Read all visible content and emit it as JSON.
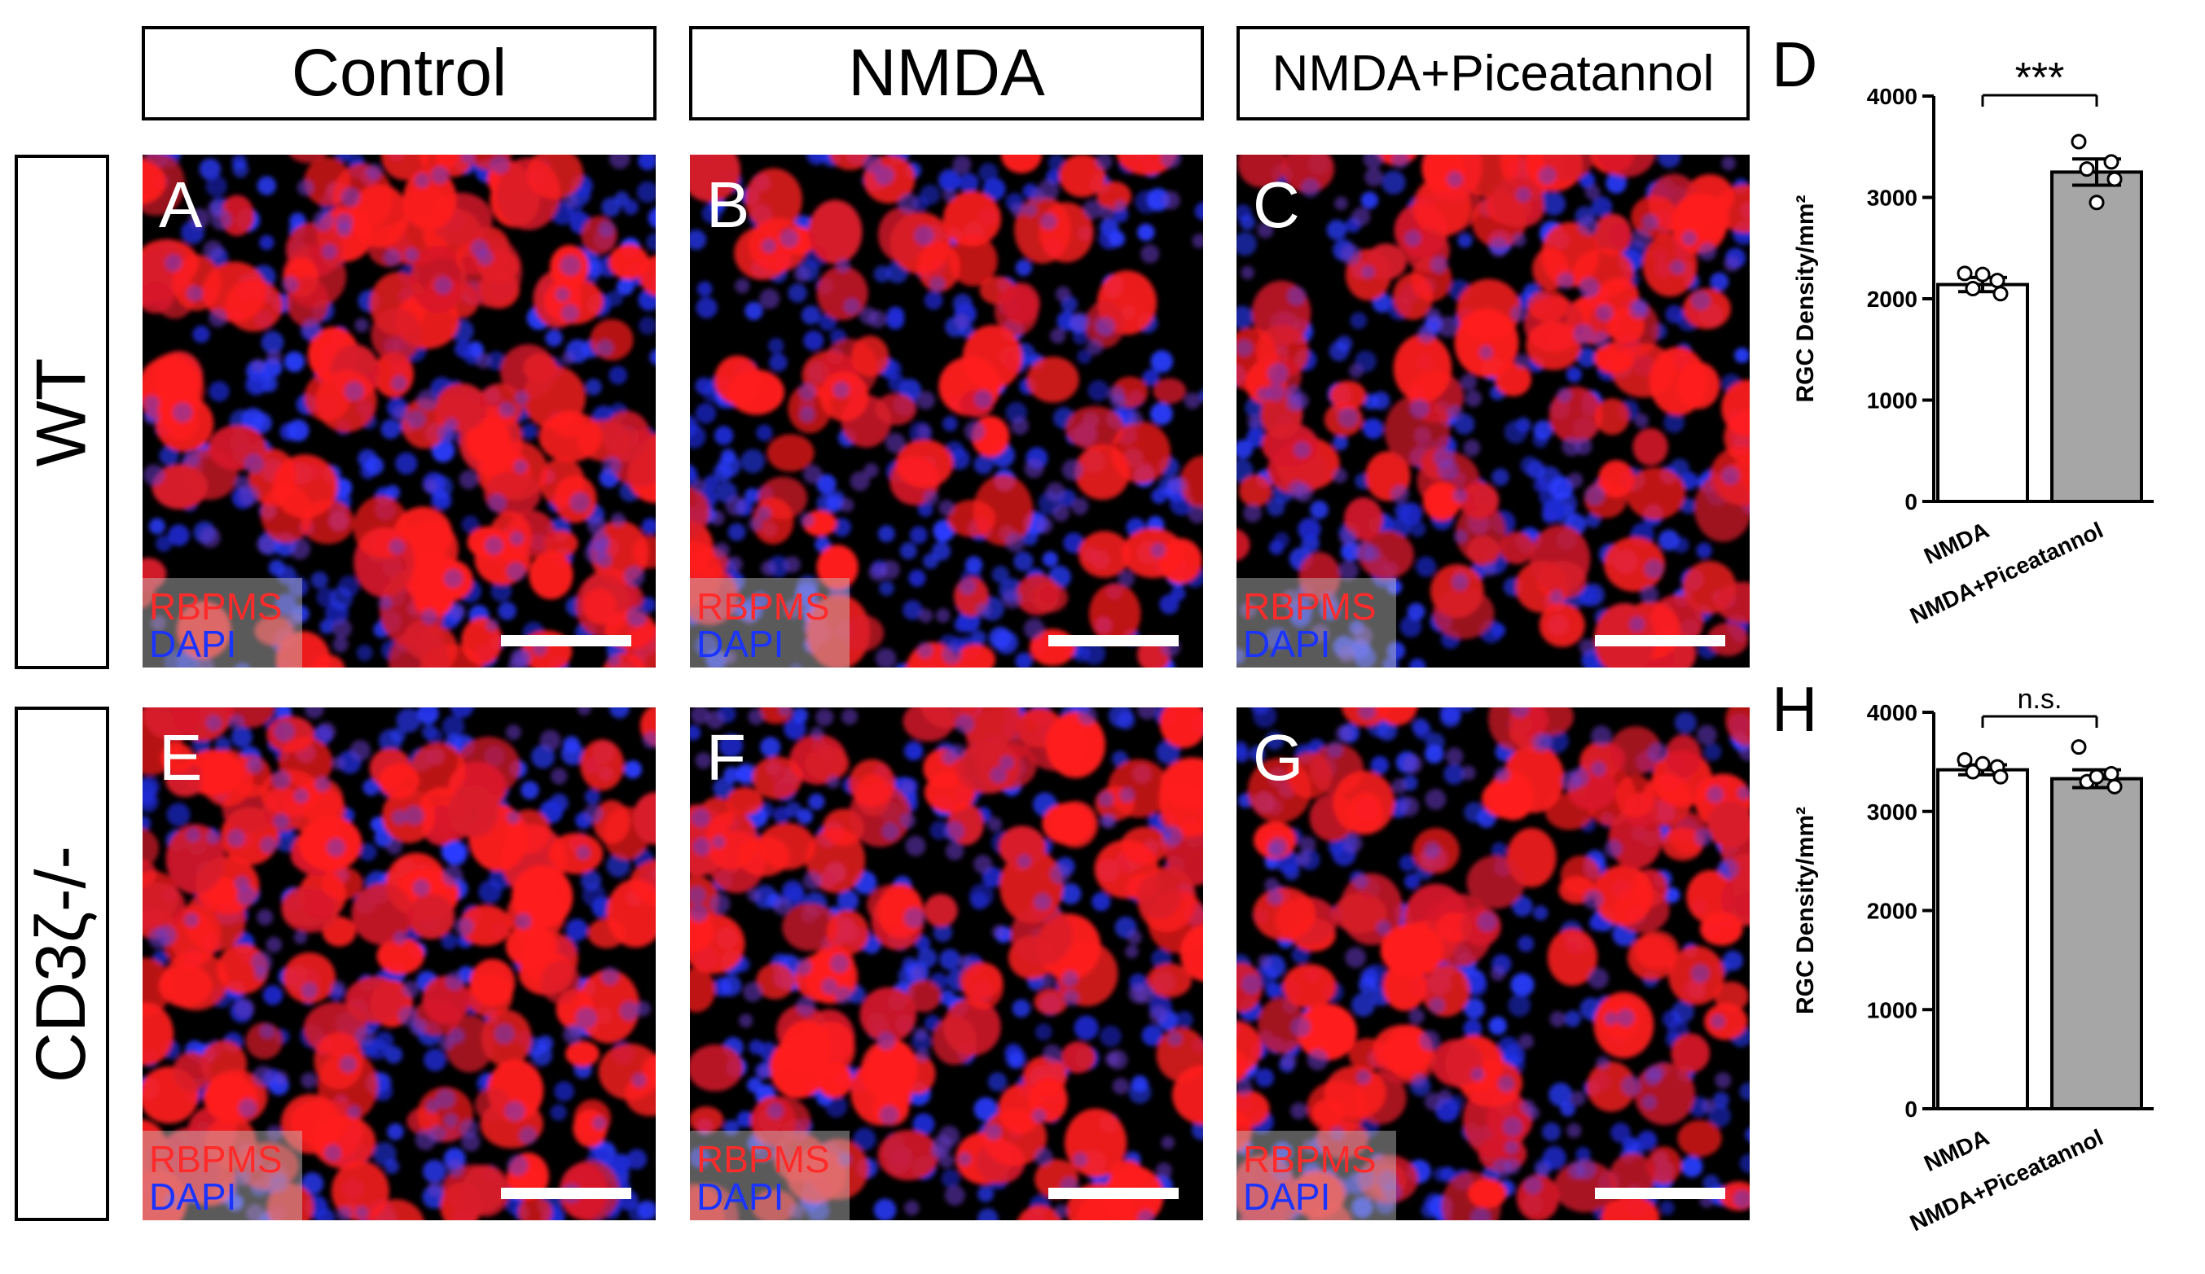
{
  "column_headers": [
    "Control",
    "NMDA",
    "NMDA+Piceatannol"
  ],
  "row_headers": [
    "WT",
    "CD3ζ-/-"
  ],
  "panels": [
    {
      "letter": "A",
      "stain1": "RBPMS",
      "stain2": "DAPI"
    },
    {
      "letter": "B",
      "stain1": "RBPMS",
      "stain2": "DAPI"
    },
    {
      "letter": "C",
      "stain1": "RBPMS",
      "stain2": "DAPI"
    },
    {
      "letter": "E",
      "stain1": "RBPMS",
      "stain2": "DAPI"
    },
    {
      "letter": "F",
      "stain1": "RBPMS",
      "stain2": "DAPI"
    },
    {
      "letter": "G",
      "stain1": "RBPMS",
      "stain2": "DAPI"
    }
  ],
  "colors": {
    "rbpms": "#ff2a2a",
    "dapi": "#1a33ff",
    "bar_open": "#ffffff",
    "bar_filled": "#a6a6a6"
  },
  "chart_data": [
    {
      "panel": "D",
      "type": "bar",
      "categories": [
        "NMDA",
        "NMDA+Piceatannol"
      ],
      "values": [
        2140,
        3250
      ],
      "errors": [
        70,
        130
      ],
      "points": [
        [
          2250,
          2180,
          2100,
          2050,
          2240
        ],
        [
          3550,
          3350,
          3280,
          3180,
          2950
        ]
      ],
      "ylabel": "RGC Density/mm²",
      "ylim": [
        0,
        4000
      ],
      "yticks": [
        "0",
        "1000",
        "2000",
        "3000",
        "4000"
      ],
      "significance": "***"
    },
    {
      "panel": "H",
      "type": "bar",
      "categories": [
        "NMDA",
        "NMDA+Piceatannol"
      ],
      "values": [
        3420,
        3330
      ],
      "errors": [
        50,
        90
      ],
      "points": [
        [
          3520,
          3450,
          3400,
          3350,
          3480
        ],
        [
          3650,
          3380,
          3300,
          3250,
          3350
        ]
      ],
      "ylabel": "RGC Density/mm²",
      "ylim": [
        0,
        4000
      ],
      "yticks": [
        "0",
        "1000",
        "2000",
        "3000",
        "4000"
      ],
      "significance": "n.s."
    }
  ]
}
